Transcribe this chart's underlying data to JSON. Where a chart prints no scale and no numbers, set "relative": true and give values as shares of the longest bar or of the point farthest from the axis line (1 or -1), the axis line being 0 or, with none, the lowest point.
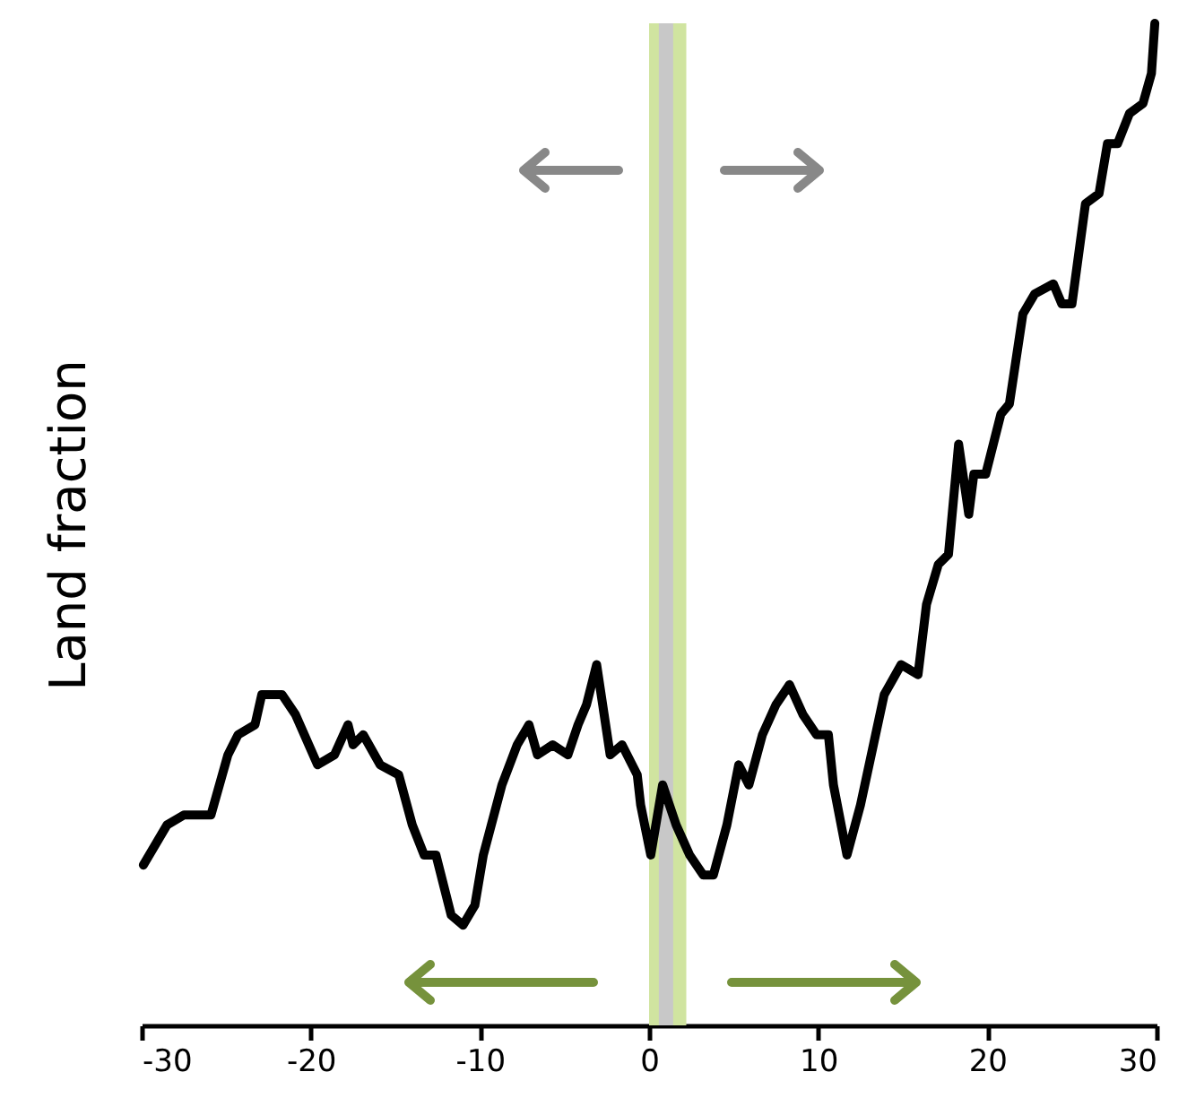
{
  "chart_data": {
    "type": "line",
    "ylabel": "Land fraction",
    "relative": true,
    "xlim": [
      -30,
      30
    ],
    "xticks": [
      -30,
      -20,
      -10,
      0,
      10,
      20,
      30
    ],
    "grid": false,
    "bands": [
      {
        "axis": "x",
        "from": 0,
        "to": 2.2,
        "color": "#d0e4a0"
      }
    ],
    "ref_lines": [
      {
        "axis": "x",
        "value": 1,
        "color": "#c8c8c8"
      }
    ],
    "series": [
      {
        "color": "#000000",
        "x": [
          -29.9,
          -28.5,
          -27.5,
          -26.5,
          -25.9,
          -24.9,
          -24.3,
          -23.3,
          -22.9,
          -21.7,
          -20.9,
          -19.6,
          -18.6,
          -17.8,
          -17.5,
          -16.9,
          -15.9,
          -14.8,
          -14.0,
          -13.3,
          -12.6,
          -11.7,
          -11.0,
          -10.3,
          -9.8,
          -8.7,
          -7.8,
          -7.1,
          -6.6,
          -5.7,
          -4.8,
          -4.2,
          -3.7,
          -3.1,
          -2.3,
          -1.6,
          -0.7,
          -0.5,
          0.1,
          0.8,
          1.6,
          2.4,
          3.2,
          3.8,
          4.6,
          5.3,
          5.9,
          6.7,
          7.5,
          8.3,
          9.1,
          9.9,
          10.6,
          10.9,
          11.7,
          12.5,
          13.9,
          14.9,
          15.9,
          16.4,
          17.1,
          17.7,
          18.3,
          18.9,
          19.2,
          19.9,
          20.8,
          21.3,
          22.1,
          22.8,
          23.9,
          24.4,
          25.0,
          25.8,
          26.6,
          27.1,
          27.7,
          28.4,
          29.2,
          29.7,
          29.9
        ],
        "values": [
          0.16,
          0.2,
          0.21,
          0.21,
          0.21,
          0.27,
          0.29,
          0.3,
          0.33,
          0.33,
          0.31,
          0.26,
          0.27,
          0.3,
          0.28,
          0.29,
          0.26,
          0.25,
          0.2,
          0.17,
          0.17,
          0.11,
          0.1,
          0.12,
          0.17,
          0.24,
          0.28,
          0.3,
          0.27,
          0.28,
          0.27,
          0.3,
          0.32,
          0.36,
          0.27,
          0.28,
          0.25,
          0.22,
          0.17,
          0.24,
          0.2,
          0.17,
          0.15,
          0.15,
          0.2,
          0.26,
          0.24,
          0.29,
          0.32,
          0.34,
          0.31,
          0.29,
          0.29,
          0.24,
          0.17,
          0.22,
          0.33,
          0.36,
          0.35,
          0.42,
          0.46,
          0.47,
          0.58,
          0.51,
          0.55,
          0.55,
          0.61,
          0.62,
          0.71,
          0.73,
          0.74,
          0.72,
          0.72,
          0.82,
          0.83,
          0.88,
          0.88,
          0.91,
          0.92,
          0.95,
          1.0
        ]
      }
    ]
  }
}
